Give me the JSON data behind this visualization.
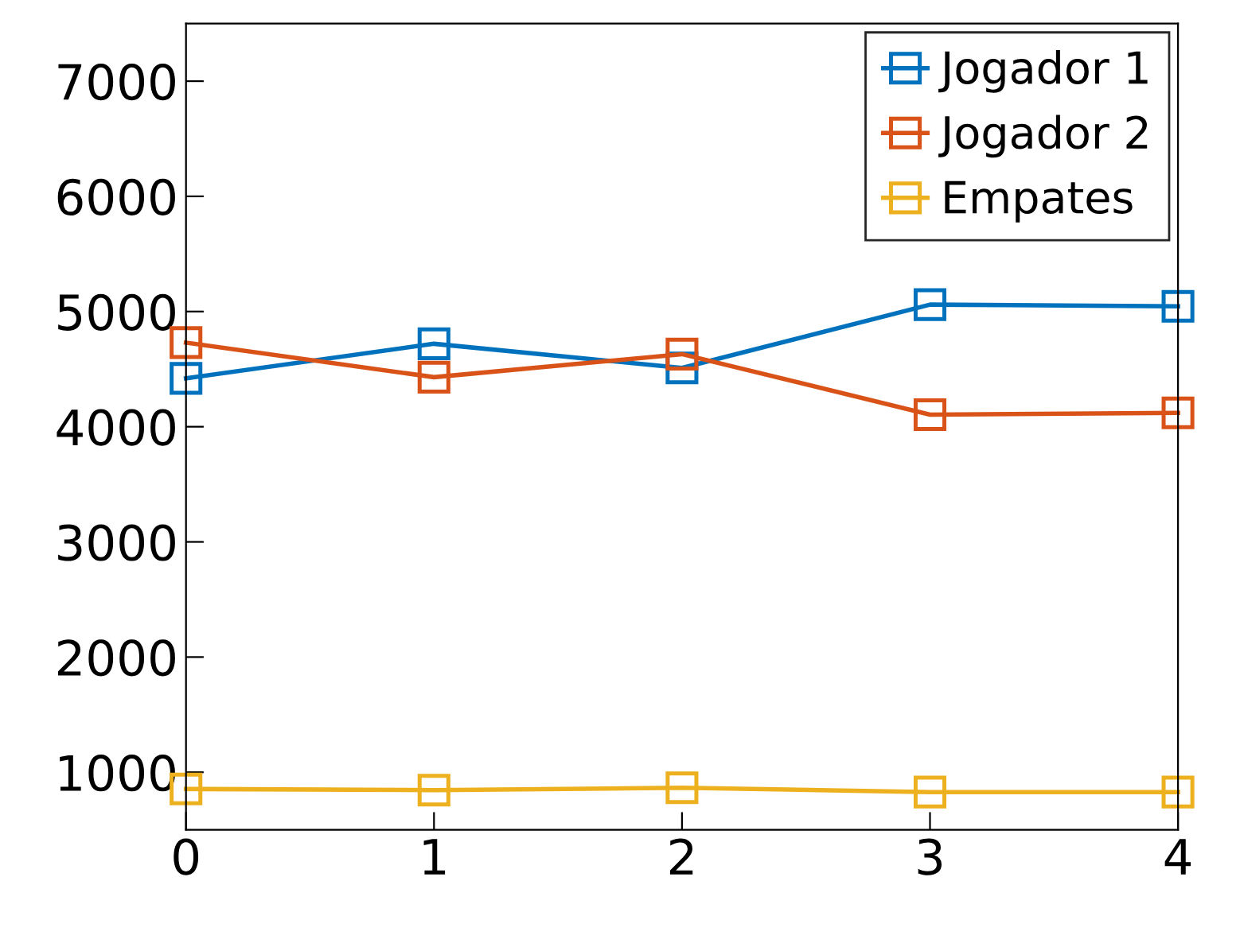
{
  "chart_data": {
    "type": "line",
    "x": [
      0,
      1,
      2,
      3,
      4
    ],
    "series": [
      {
        "name": "Jogador 1",
        "color": "#0072bd",
        "values": [
          4420,
          4720,
          4510,
          5060,
          5045
        ]
      },
      {
        "name": "Jogador 2",
        "color": "#d95319",
        "values": [
          4730,
          4430,
          4630,
          4105,
          4120
        ]
      },
      {
        "name": "Empates",
        "color": "#edb120",
        "values": [
          855,
          845,
          865,
          828,
          828
        ]
      }
    ],
    "xlim": [
      0,
      4
    ],
    "xticks": [
      0,
      1,
      2,
      3,
      4
    ],
    "ylim": [
      500,
      7500
    ],
    "yticks": [
      1000,
      2000,
      3000,
      4000,
      5000,
      6000,
      7000
    ],
    "marker": "square",
    "line_style": "solid",
    "legend": "top right",
    "grid": false
  }
}
